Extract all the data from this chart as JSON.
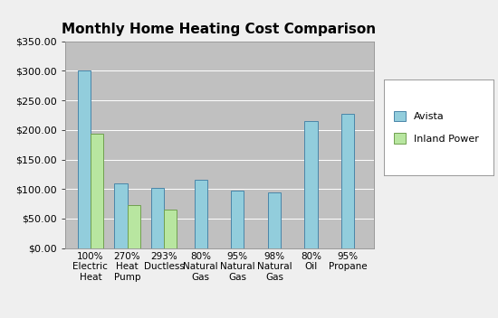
{
  "title": "Monthly Home Heating Cost Comparison",
  "categories_line1": [
    "100%",
    "270%",
    "293%",
    "80%",
    "95%",
    "98%",
    "80%",
    "95%"
  ],
  "categories_line2": [
    "Electric\nHeat",
    "Heat\nPump",
    "Ductless",
    "Natural\nGas",
    "Natural\nGas",
    "Natural\nGas",
    "Oil",
    "Propane"
  ],
  "avista_values": [
    300,
    110,
    102,
    115,
    97,
    94,
    215,
    227
  ],
  "inland_values": [
    193,
    72,
    65,
    null,
    null,
    null,
    null,
    null
  ],
  "avista_color": "#92CDDC",
  "inland_color": "#B8E6A0",
  "avista_edge": "#4A86A8",
  "inland_edge": "#70A050",
  "avista_label": "Avista",
  "inland_label": "Inland Power",
  "ylim": [
    0,
    350
  ],
  "yticks": [
    0,
    50,
    100,
    150,
    200,
    250,
    300,
    350
  ],
  "plot_bg_color": "#C0C0C0",
  "fig_bg_color": "#EFEFEF",
  "title_fontsize": 11,
  "bar_width": 0.35,
  "legend_bg_color": "#FFFFFF",
  "grid_color": "#AAAAAA"
}
